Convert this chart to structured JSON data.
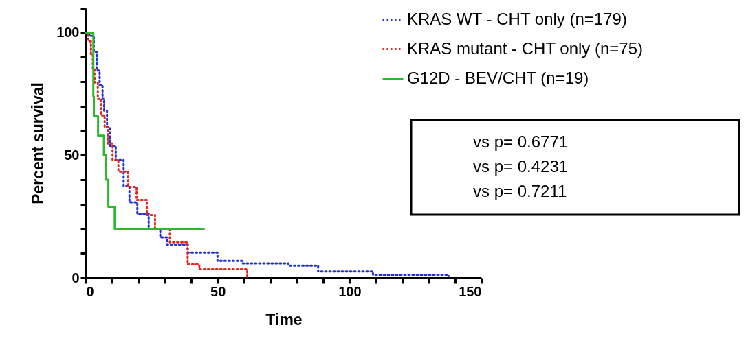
{
  "chart_data": {
    "type": "step",
    "xlabel": "Time",
    "ylabel": "Percent survival",
    "xlim": [
      0,
      150
    ],
    "ylim": [
      0,
      110
    ],
    "xticks": [
      0,
      {
        "value": 10,
        "label": null
      },
      {
        "value": 20,
        "label": null
      },
      {
        "value": 30,
        "label": null
      },
      {
        "value": 40,
        "label": null
      },
      50,
      {
        "value": 60,
        "label": null
      },
      {
        "value": 70,
        "label": null
      },
      {
        "value": 80,
        "label": null
      },
      {
        "value": 90,
        "label": null
      },
      100,
      {
        "value": 110,
        "label": null
      },
      {
        "value": 120,
        "label": null
      },
      {
        "value": 130,
        "label": null
      },
      {
        "value": 140,
        "label": null
      },
      150
    ],
    "yticks": [
      0,
      {
        "value": 10,
        "label": null
      },
      {
        "value": 20,
        "label": null
      },
      {
        "value": 30,
        "label": null
      },
      {
        "value": 40,
        "label": null
      },
      50,
      {
        "value": 60,
        "label": null
      },
      {
        "value": 70,
        "label": null
      },
      {
        "value": 80,
        "label": null
      },
      {
        "value": 90,
        "label": null
      },
      100,
      {
        "value": 110,
        "label": null
      }
    ],
    "grid": false,
    "legend": "top right",
    "marker": "none",
    "series": [
      {
        "name": "KRAS WT - CHT only  (n=179)",
        "color": "#1f2fd6",
        "line_style": "dotted",
        "x": [
          0,
          1.3,
          3.0,
          4.1,
          5.2,
          6.3,
          6.9,
          8.0,
          9.1,
          11.3,
          14.3,
          16.5,
          19.5,
          23.8,
          28.2,
          30.8,
          38.6,
          49.9,
          59.5,
          76.8,
          88.1,
          108.9,
          137.6
        ],
        "values": [
          100,
          98.7,
          92.2,
          84.6,
          78.7,
          73,
          68.2,
          61.5,
          53.8,
          48.1,
          37.5,
          30.8,
          26,
          19.8,
          16.5,
          13.6,
          10.3,
          6.9,
          5.9,
          5.0,
          2.6,
          1.2,
          0.7
        ]
      },
      {
        "name": "KRAS mutant - CHT only  (n=75)",
        "color": "#e3241b",
        "line_style": "dotted",
        "x": [
          0,
          0.9,
          1.9,
          2.6,
          3.3,
          4.5,
          5.8,
          7.1,
          8.4,
          10.1,
          12.3,
          16,
          19.2,
          23.1,
          26.2,
          31.8,
          38.6,
          43,
          60.3,
          61.2
        ],
        "values": [
          100,
          96.5,
          91.2,
          85.4,
          79.7,
          73,
          66.3,
          61.5,
          54.8,
          48.1,
          43.3,
          37.1,
          31.8,
          25.6,
          19.8,
          14.5,
          5.5,
          3.5,
          3.5,
          0
        ]
      },
      {
        "name": "G12D - BEV/CHT  (n=19)",
        "color": "#2eb82e",
        "line_style": "solid",
        "x": [
          0,
          2.8,
          3.0,
          4.6,
          6.8,
          7.6,
          8.5,
          10.9,
          44.7
        ],
        "values": [
          100,
          74,
          66,
          58,
          50,
          40,
          29,
          20,
          20
        ]
      }
    ],
    "annotations": [
      "vs   p= 0.6771",
      "vs   p= 0.4231",
      "vs   p= 0.7211"
    ]
  }
}
